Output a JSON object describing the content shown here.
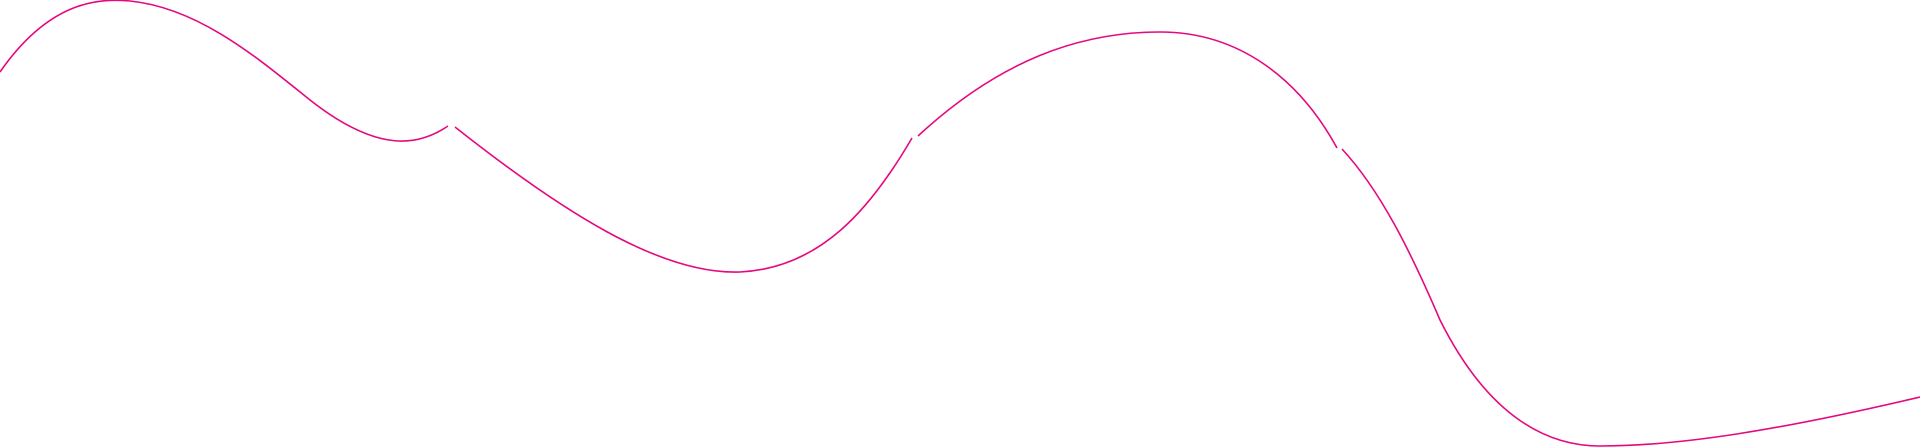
{
  "decoration": {
    "type": "wavy-line",
    "stroke_color": "#e5097f"
  }
}
